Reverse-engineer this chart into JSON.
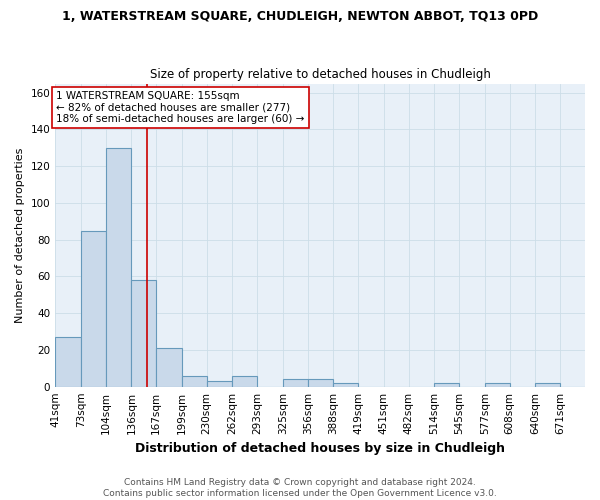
{
  "title": "1, WATERSTREAM SQUARE, CHUDLEIGH, NEWTON ABBOT, TQ13 0PD",
  "subtitle": "Size of property relative to detached houses in Chudleigh",
  "xlabel": "Distribution of detached houses by size in Chudleigh",
  "ylabel": "Number of detached properties",
  "bar_color": "#c9d9ea",
  "bar_edge_color": "#6699bb",
  "categories": [
    "41sqm",
    "73sqm",
    "104sqm",
    "136sqm",
    "167sqm",
    "199sqm",
    "230sqm",
    "262sqm",
    "293sqm",
    "325sqm",
    "356sqm",
    "388sqm",
    "419sqm",
    "451sqm",
    "482sqm",
    "514sqm",
    "545sqm",
    "577sqm",
    "608sqm",
    "640sqm",
    "671sqm"
  ],
  "values": [
    27,
    85,
    130,
    58,
    21,
    6,
    3,
    6,
    0,
    4,
    4,
    2,
    0,
    0,
    0,
    2,
    0,
    2,
    0,
    2,
    0
  ],
  "bin_edges": [
    41,
    73,
    104,
    136,
    167,
    199,
    230,
    262,
    293,
    325,
    356,
    388,
    419,
    451,
    482,
    514,
    545,
    577,
    608,
    640,
    671,
    702
  ],
  "vline_x": 155,
  "ylim": [
    0,
    165
  ],
  "yticks": [
    0,
    20,
    40,
    60,
    80,
    100,
    120,
    140,
    160
  ],
  "annotation_line1": "1 WATERSTREAM SQUARE: 155sqm",
  "annotation_line2": "← 82% of detached houses are smaller (277)",
  "annotation_line3": "18% of semi-detached houses are larger (60) →",
  "annotation_box_color": "#ffffff",
  "annotation_box_edge": "#cc0000",
  "vline_color": "#cc0000",
  "grid_color": "#ccdde8",
  "background_color": "#e8f0f8",
  "footer_line1": "Contains HM Land Registry data © Crown copyright and database right 2024.",
  "footer_line2": "Contains public sector information licensed under the Open Government Licence v3.0.",
  "title_fontsize": 9,
  "subtitle_fontsize": 8.5,
  "xlabel_fontsize": 9,
  "ylabel_fontsize": 8,
  "tick_fontsize": 7.5,
  "annotation_fontsize": 7.5,
  "footer_fontsize": 6.5
}
